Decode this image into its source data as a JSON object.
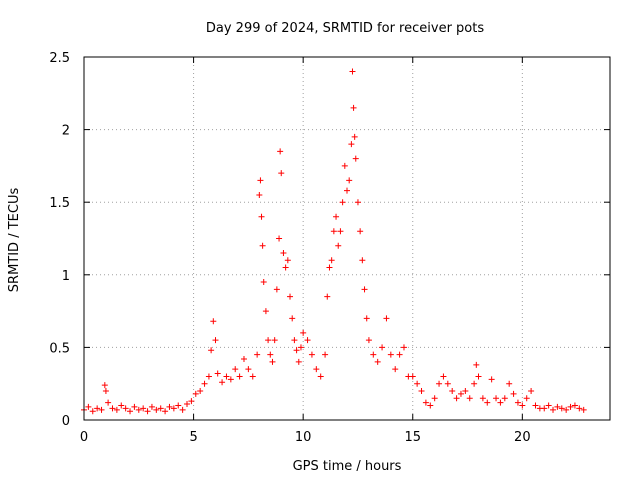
{
  "chart_data": {
    "type": "scatter",
    "title": "Day 299 of 2024, SRMTID for receiver pots",
    "xlabel": "GPS time / hours",
    "ylabel": "SRMTID / TECUs",
    "xlim": [
      0,
      24
    ],
    "ylim": [
      0,
      2.5
    ],
    "xticks": [
      0,
      5,
      10,
      15,
      20
    ],
    "yticks": [
      0,
      0.5,
      1,
      1.5,
      2,
      2.5
    ],
    "xtick_labels": [
      "0",
      "5",
      "10",
      "15",
      "20"
    ],
    "ytick_labels": [
      "0",
      "0.5",
      "1",
      "1.5",
      "2",
      "2.5"
    ],
    "grid": true,
    "marker": "+",
    "series": [
      {
        "name": "SRMTID",
        "color": "#ff0000",
        "points": [
          [
            0.0,
            0.07
          ],
          [
            0.2,
            0.09
          ],
          [
            0.4,
            0.06
          ],
          [
            0.6,
            0.08
          ],
          [
            0.8,
            0.07
          ],
          [
            0.95,
            0.24
          ],
          [
            1.0,
            0.2
          ],
          [
            1.1,
            0.12
          ],
          [
            1.3,
            0.08
          ],
          [
            1.5,
            0.07
          ],
          [
            1.7,
            0.1
          ],
          [
            1.9,
            0.08
          ],
          [
            2.1,
            0.06
          ],
          [
            2.3,
            0.09
          ],
          [
            2.5,
            0.07
          ],
          [
            2.7,
            0.08
          ],
          [
            2.9,
            0.06
          ],
          [
            3.1,
            0.09
          ],
          [
            3.3,
            0.07
          ],
          [
            3.5,
            0.08
          ],
          [
            3.7,
            0.06
          ],
          [
            3.9,
            0.09
          ],
          [
            4.1,
            0.08
          ],
          [
            4.3,
            0.1
          ],
          [
            4.5,
            0.07
          ],
          [
            4.7,
            0.11
          ],
          [
            4.9,
            0.13
          ],
          [
            5.1,
            0.18
          ],
          [
            5.3,
            0.2
          ],
          [
            5.5,
            0.25
          ],
          [
            5.7,
            0.3
          ],
          [
            5.8,
            0.48
          ],
          [
            5.9,
            0.68
          ],
          [
            6.0,
            0.55
          ],
          [
            6.1,
            0.32
          ],
          [
            6.3,
            0.26
          ],
          [
            6.5,
            0.3
          ],
          [
            6.7,
            0.28
          ],
          [
            6.9,
            0.35
          ],
          [
            7.1,
            0.3
          ],
          [
            7.3,
            0.42
          ],
          [
            7.5,
            0.35
          ],
          [
            7.7,
            0.3
          ],
          [
            7.9,
            0.45
          ],
          [
            8.0,
            1.55
          ],
          [
            8.05,
            1.65
          ],
          [
            8.1,
            1.4
          ],
          [
            8.15,
            1.2
          ],
          [
            8.2,
            0.95
          ],
          [
            8.3,
            0.75
          ],
          [
            8.4,
            0.55
          ],
          [
            8.5,
            0.45
          ],
          [
            8.6,
            0.4
          ],
          [
            8.7,
            0.55
          ],
          [
            8.8,
            0.9
          ],
          [
            8.9,
            1.25
          ],
          [
            8.95,
            1.85
          ],
          [
            9.0,
            1.7
          ],
          [
            9.1,
            1.15
          ],
          [
            9.2,
            1.05
          ],
          [
            9.3,
            1.1
          ],
          [
            9.4,
            0.85
          ],
          [
            9.5,
            0.7
          ],
          [
            9.6,
            0.55
          ],
          [
            9.7,
            0.48
          ],
          [
            9.8,
            0.4
          ],
          [
            9.9,
            0.5
          ],
          [
            10.0,
            0.6
          ],
          [
            10.2,
            0.55
          ],
          [
            10.4,
            0.45
          ],
          [
            10.6,
            0.35
          ],
          [
            10.8,
            0.3
          ],
          [
            11.0,
            0.45
          ],
          [
            11.1,
            0.85
          ],
          [
            11.2,
            1.05
          ],
          [
            11.3,
            1.1
          ],
          [
            11.4,
            1.3
          ],
          [
            11.5,
            1.4
          ],
          [
            11.6,
            1.2
          ],
          [
            11.7,
            1.3
          ],
          [
            11.8,
            1.5
          ],
          [
            11.9,
            1.75
          ],
          [
            12.0,
            1.58
          ],
          [
            12.1,
            1.65
          ],
          [
            12.2,
            1.9
          ],
          [
            12.25,
            2.4
          ],
          [
            12.3,
            2.15
          ],
          [
            12.35,
            1.95
          ],
          [
            12.4,
            1.8
          ],
          [
            12.5,
            1.5
          ],
          [
            12.6,
            1.3
          ],
          [
            12.7,
            1.1
          ],
          [
            12.8,
            0.9
          ],
          [
            12.9,
            0.7
          ],
          [
            13.0,
            0.55
          ],
          [
            13.2,
            0.45
          ],
          [
            13.4,
            0.4
          ],
          [
            13.6,
            0.5
          ],
          [
            13.8,
            0.7
          ],
          [
            14.0,
            0.45
          ],
          [
            14.2,
            0.35
          ],
          [
            14.4,
            0.45
          ],
          [
            14.6,
            0.5
          ],
          [
            14.8,
            0.3
          ],
          [
            15.0,
            0.3
          ],
          [
            15.2,
            0.25
          ],
          [
            15.4,
            0.2
          ],
          [
            15.6,
            0.12
          ],
          [
            15.8,
            0.1
          ],
          [
            16.0,
            0.15
          ],
          [
            16.2,
            0.25
          ],
          [
            16.4,
            0.3
          ],
          [
            16.6,
            0.25
          ],
          [
            16.8,
            0.2
          ],
          [
            17.0,
            0.15
          ],
          [
            17.2,
            0.18
          ],
          [
            17.4,
            0.2
          ],
          [
            17.6,
            0.15
          ],
          [
            17.8,
            0.25
          ],
          [
            17.9,
            0.38
          ],
          [
            18.0,
            0.3
          ],
          [
            18.2,
            0.15
          ],
          [
            18.4,
            0.12
          ],
          [
            18.6,
            0.28
          ],
          [
            18.8,
            0.15
          ],
          [
            19.0,
            0.12
          ],
          [
            19.2,
            0.15
          ],
          [
            19.4,
            0.25
          ],
          [
            19.6,
            0.18
          ],
          [
            19.8,
            0.12
          ],
          [
            20.0,
            0.1
          ],
          [
            20.2,
            0.15
          ],
          [
            20.4,
            0.2
          ],
          [
            20.6,
            0.1
          ],
          [
            20.8,
            0.08
          ],
          [
            21.0,
            0.08
          ],
          [
            21.2,
            0.1
          ],
          [
            21.4,
            0.07
          ],
          [
            21.6,
            0.09
          ],
          [
            21.8,
            0.08
          ],
          [
            22.0,
            0.07
          ],
          [
            22.2,
            0.09
          ],
          [
            22.4,
            0.1
          ],
          [
            22.6,
            0.08
          ],
          [
            22.8,
            0.07
          ]
        ]
      }
    ]
  }
}
